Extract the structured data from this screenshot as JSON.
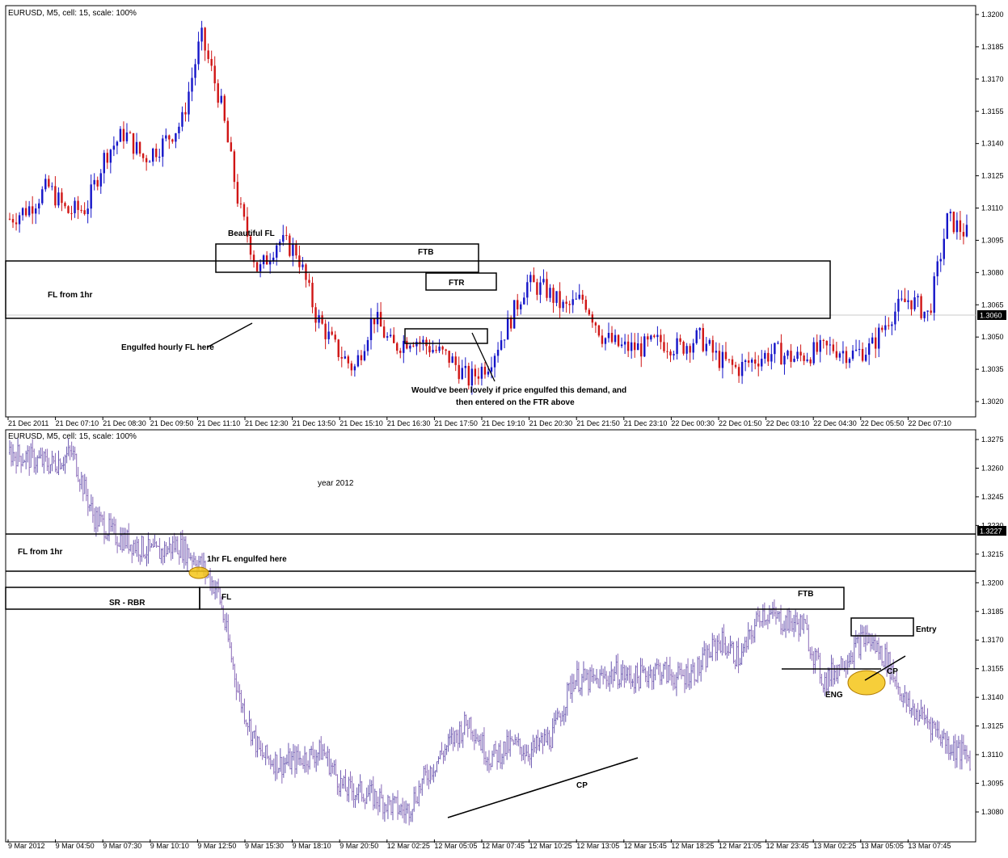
{
  "charts": [
    {
      "header": "EURUSD, M5, cell: 15, scale: 100%",
      "price_levels": [
        "1.3200",
        "1.3185",
        "1.3170",
        "1.3155",
        "1.3140",
        "1.3125",
        "1.3110",
        "1.3095",
        "1.3080",
        "1.3065",
        "1.3050",
        "1.3035",
        "1.3020"
      ],
      "current_price": "1.3060",
      "time_labels": [
        "21 Dec 2011",
        "21 Dec 07:10",
        "21 Dec 08:30",
        "21 Dec 09:50",
        "21 Dec 11:10",
        "21 Dec 12:30",
        "21 Dec 13:50",
        "21 Dec 15:10",
        "21 Dec 16:30",
        "21 Dec 17:50",
        "21 Dec 19:10",
        "21 Dec 20:30",
        "21 Dec 21:50",
        "21 Dec 23:10",
        "22 Dec 00:30",
        "22 Dec 01:50",
        "22 Dec 03:10",
        "22 Dec 04:30",
        "22 Dec 05:50",
        "22 Dec 07:10"
      ],
      "annotations": {
        "beautiful_fl": "Beautiful FL",
        "ftb": "FTB",
        "ftr": "FTR",
        "fl_from_1hr": "FL from 1hr",
        "engulfed": "Engulfed hourly FL here",
        "note_line1": "Would've been lovely if price engulfed this demand, and",
        "note_line2": "then entered on the FTR above"
      }
    },
    {
      "header": "EURUSD, M5, cell: 15, scale: 100%",
      "price_levels": [
        "1.3275",
        "1.3260",
        "1.3245",
        "1.3230",
        "1.3215",
        "1.3200",
        "1.3185",
        "1.3170",
        "1.3155",
        "1.3140",
        "1.3125",
        "1.3110",
        "1.3095",
        "1.3080"
      ],
      "current_price": "1.3227",
      "time_labels": [
        "9 Mar 2012",
        "9 Mar 04:50",
        "9 Mar 07:30",
        "9 Mar 10:10",
        "9 Mar 12:50",
        "9 Mar 15:30",
        "9 Mar 18:10",
        "9 Mar 20:50",
        "12 Mar 02:25",
        "12 Mar 05:05",
        "12 Mar 07:45",
        "12 Mar 10:25",
        "12 Mar 13:05",
        "12 Mar 15:45",
        "12 Mar 18:25",
        "12 Mar 21:05",
        "12 Mar 23:45",
        "13 Mar 02:25",
        "13 Mar 05:05",
        "13 Mar 07:45"
      ],
      "annotations": {
        "year": "year 2012",
        "fl_from_1hr": "FL from 1hr",
        "fl_engulfed": "1hr FL engulfed here",
        "sr_rbr": "SR - RBR",
        "fl": "FL",
        "ftb": "FTB",
        "entry": "Entry",
        "cp_top": "CP",
        "eng": "ENG",
        "cp_bottom": "CP"
      }
    }
  ],
  "colors": {
    "bull": "#1515c8",
    "bear": "#d01515",
    "bar": "#6a58b0",
    "highlight": "#f5c518"
  },
  "chart_data": [
    {
      "type": "candlestick",
      "title": "EURUSD, M5, cell: 15, scale: 100%",
      "y_unit": "price",
      "ylim": [
        1.3012,
        1.3205
      ],
      "x_ticks": [
        "21 Dec 2011",
        "21 Dec 07:10",
        "21 Dec 08:30",
        "21 Dec 09:50",
        "21 Dec 11:10",
        "21 Dec 12:30",
        "21 Dec 13:50",
        "21 Dec 15:10",
        "21 Dec 16:30",
        "21 Dec 17:50",
        "21 Dec 19:10",
        "21 Dec 20:30",
        "21 Dec 21:50",
        "21 Dec 23:10",
        "22 Dec 00:30",
        "22 Dec 01:50",
        "22 Dec 03:10",
        "22 Dec 04:30",
        "22 Dec 05:50",
        "22 Dec 07:10"
      ],
      "close_path": [
        1.3105,
        1.311,
        1.312,
        1.3108,
        1.311,
        1.3135,
        1.3145,
        1.3133,
        1.314,
        1.315,
        1.319,
        1.316,
        1.311,
        1.308,
        1.3095,
        1.309,
        1.306,
        1.3045,
        1.3035,
        1.306,
        1.3045,
        1.305,
        1.3045,
        1.304,
        1.303,
        1.3038,
        1.3055,
        1.3075,
        1.3072,
        1.3063,
        1.3068,
        1.305,
        1.3045,
        1.3045,
        1.3048,
        1.3045,
        1.305,
        1.304,
        1.3035,
        1.304,
        1.3043,
        1.304,
        1.3043,
        1.3045,
        1.3042,
        1.3045,
        1.306,
        1.3068,
        1.306,
        1.3105,
        1.3098
      ],
      "zones": [
        {
          "label": "FL from 1hr",
          "from": 1.306,
          "to": 1.3087
        },
        {
          "label": "FTB",
          "from": 1.3081,
          "to": 1.3094
        },
        {
          "label": "FTR",
          "from": 1.3072,
          "to": 1.308
        },
        {
          "label": "demand",
          "from": 1.3047,
          "to": 1.3054
        }
      ],
      "current_price": 1.306
    },
    {
      "type": "bar",
      "title": "EURUSD, M5, cell: 15, scale: 100%",
      "y_unit": "price",
      "ylim": [
        1.307,
        1.328
      ],
      "x_ticks": [
        "9 Mar 2012",
        "9 Mar 04:50",
        "9 Mar 07:30",
        "9 Mar 10:10",
        "9 Mar 12:50",
        "9 Mar 15:30",
        "9 Mar 18:10",
        "9 Mar 20:50",
        "12 Mar 02:25",
        "12 Mar 05:05",
        "12 Mar 07:45",
        "12 Mar 10:25",
        "12 Mar 13:05",
        "12 Mar 15:45",
        "12 Mar 18:25",
        "12 Mar 21:05",
        "12 Mar 23:45",
        "13 Mar 02:25",
        "13 Mar 05:05",
        "13 Mar 07:45"
      ],
      "close_path": [
        1.3268,
        1.3265,
        1.3262,
        1.3268,
        1.3235,
        1.3225,
        1.322,
        1.3215,
        1.322,
        1.3212,
        1.3195,
        1.314,
        1.311,
        1.3105,
        1.3108,
        1.3112,
        1.3092,
        1.309,
        1.3085,
        1.308,
        1.31,
        1.3115,
        1.3128,
        1.3108,
        1.3115,
        1.3112,
        1.312,
        1.315,
        1.3148,
        1.3153,
        1.315,
        1.3155,
        1.315,
        1.3155,
        1.317,
        1.316,
        1.3185,
        1.318,
        1.3178,
        1.3148,
        1.316,
        1.3172,
        1.316,
        1.3135,
        1.3128,
        1.3115,
        1.3108
      ],
      "zones": [
        {
          "label": "FL from 1hr",
          "from": 1.3206,
          "to": 1.3229
        },
        {
          "label": "SR - RBR",
          "from": 1.3187,
          "to": 1.3197
        }
      ],
      "current_price": 1.3227
    }
  ]
}
